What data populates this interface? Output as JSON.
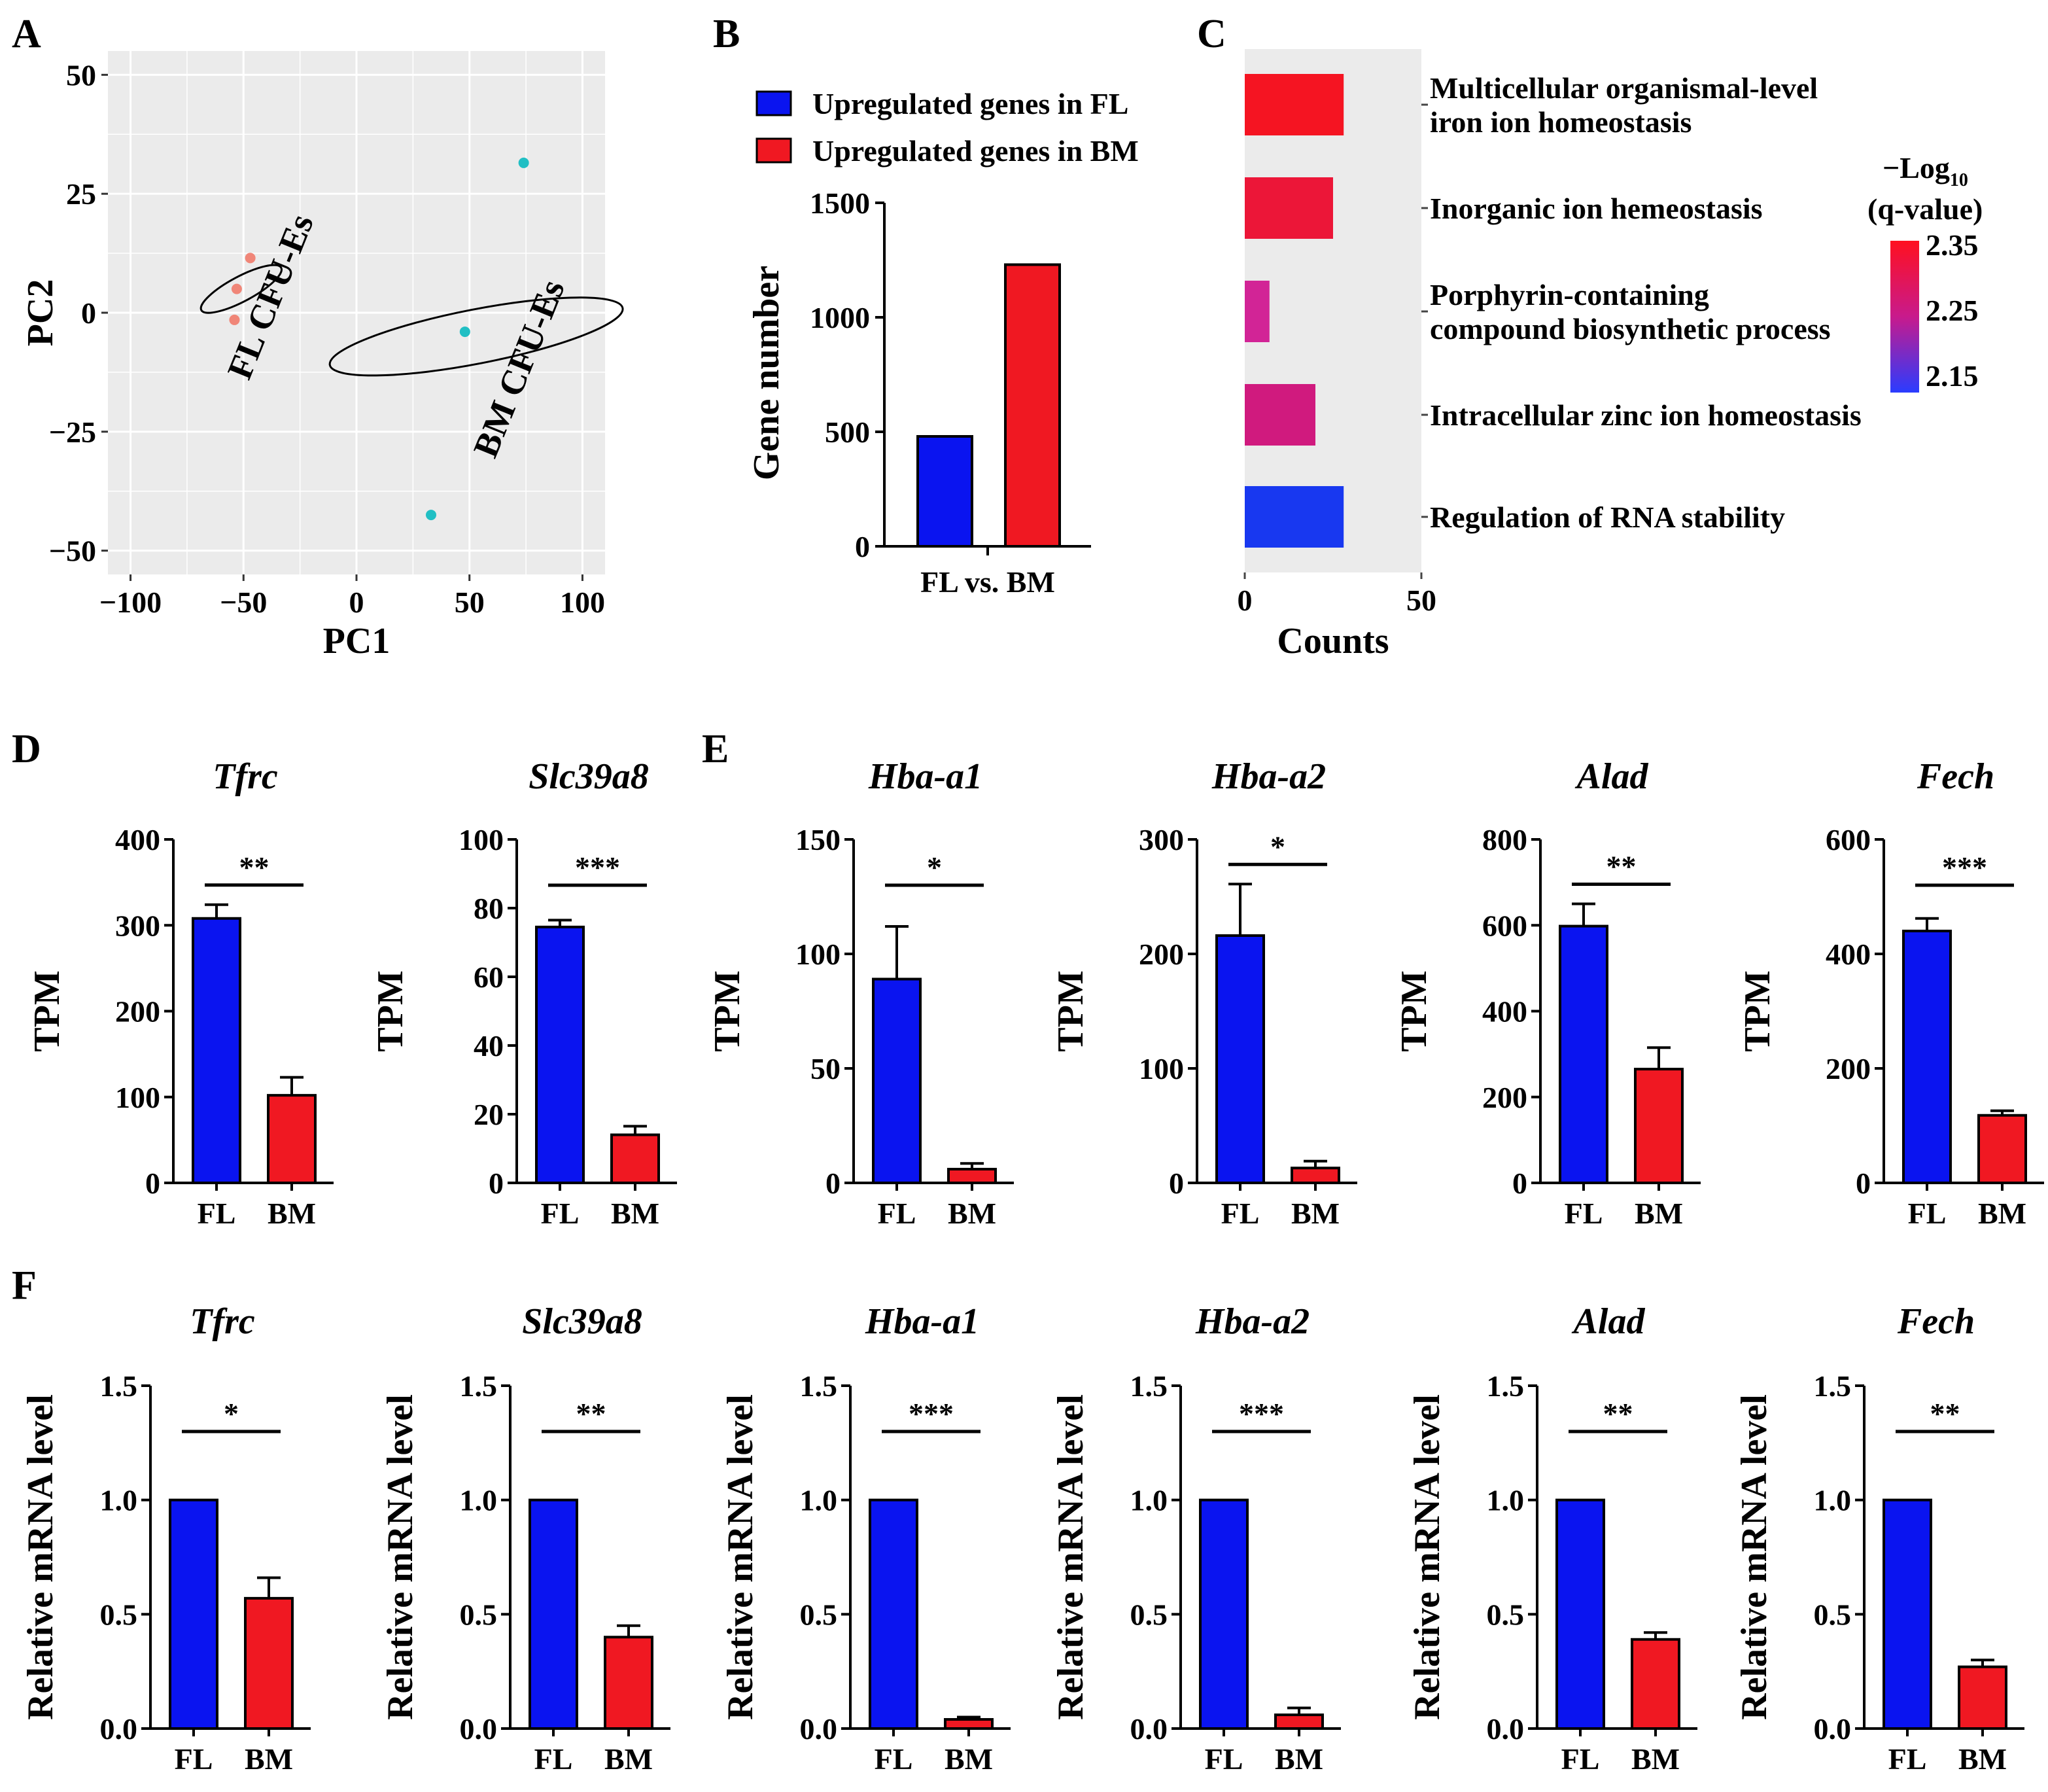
{
  "colors": {
    "fl": "#0a14f0",
    "bm": "#f01822",
    "fl_point": "#f08678",
    "bm_point": "#21bfc4",
    "panel_bg": "#ebebeb",
    "grid": "#ffffff"
  },
  "chart_data": [
    {
      "panel": "A",
      "type": "scatter",
      "xlabel": "PC1",
      "ylabel": "PC2",
      "xlim": [
        -110,
        110
      ],
      "ylim": [
        -55,
        55
      ],
      "x_ticks": [
        -100,
        -50,
        0,
        50,
        100
      ],
      "y_ticks": [
        -50,
        -25,
        0,
        25,
        50
      ],
      "x_tick_labels": [
        "−100",
        "−50",
        "0",
        "50",
        "100"
      ],
      "y_tick_labels": [
        "−50",
        "−25",
        "0",
        "25",
        "50"
      ],
      "grid": true,
      "series": [
        {
          "name": "FL CFU-Es",
          "label": "FL CFU-Es",
          "color_key": "fl_point",
          "points": [
            {
              "x": -47,
              "y": 11.5
            },
            {
              "x": -53,
              "y": 5
            },
            {
              "x": -54,
              "y": -1.5
            }
          ],
          "ellipse": {
            "cx": -51,
            "cy": 5,
            "rx": 5.5,
            "ry": 20,
            "angle": 62
          }
        },
        {
          "name": "BM CFU-Es",
          "label": "BM CFU-Es",
          "color_key": "bm_point",
          "points": [
            {
              "x": 74,
              "y": 31.5
            },
            {
              "x": 48,
              "y": -4
            },
            {
              "x": 33,
              "y": -42.5
            }
          ],
          "ellipse": {
            "cx": 53,
            "cy": -5,
            "rx": 12,
            "ry": 66,
            "angle": 79
          }
        }
      ]
    },
    {
      "panel": "B",
      "type": "bar",
      "ylabel": "Gene number",
      "categories": [
        "FL vs. BM"
      ],
      "ylim": [
        0,
        1500
      ],
      "y_ticks": [
        0,
        500,
        1000,
        1500
      ],
      "series": [
        {
          "name": "Upregulated genes in FL",
          "values": [
            480
          ],
          "color_key": "fl"
        },
        {
          "name": "Upregulated genes in BM",
          "values": [
            1230
          ],
          "color_key": "bm"
        }
      ],
      "legend": "top"
    },
    {
      "panel": "C",
      "type": "bar",
      "orientation": "horizontal",
      "xlabel": "Counts",
      "xlim": [
        0,
        50
      ],
      "x_ticks": [
        0,
        50
      ],
      "categories": [
        [
          "Multicellular organismal-level",
          "iron ion homeostasis"
        ],
        [
          "Inorganic ion hemeostasis"
        ],
        [
          "Porphyrin-containing",
          "compound biosynthetic process"
        ],
        [
          "Intracellular zinc ion homeostasis"
        ],
        [
          "Regulation of RNA stability"
        ]
      ],
      "values": [
        28,
        25,
        7,
        20,
        28
      ],
      "bar_colors": [
        "#f51422",
        "#ec1638",
        "#d22496",
        "#d01a7e",
        "#1838f0"
      ],
      "colorbar": {
        "title_prefix": "−Log",
        "title_sub": "10",
        "title_line2": "(q-value)",
        "ticks": [
          "2.35",
          "2.25",
          "2.15"
        ]
      }
    }
  ],
  "panels": {
    "D": {
      "label": "D",
      "ylabel": "TPM",
      "categories": [
        "FL",
        "BM"
      ],
      "genes": [
        {
          "gene": "Tfrc",
          "ymax": 400,
          "ticks": [
            0,
            100,
            200,
            300,
            400
          ],
          "tick_labels": [
            "0",
            "100",
            "200",
            "300",
            "400"
          ],
          "values": [
            308,
            102
          ],
          "errors": [
            16,
            21
          ],
          "sig": "**"
        },
        {
          "gene": "Slc39a8",
          "ymax": 100,
          "ticks": [
            0,
            20,
            40,
            60,
            80,
            100
          ],
          "tick_labels": [
            "0",
            "20",
            "40",
            "60",
            "80",
            "100"
          ],
          "values": [
            74.5,
            14
          ],
          "errors": [
            2,
            2.5
          ],
          "sig": "***"
        }
      ]
    },
    "E": {
      "label": "E",
      "ylabel": "TPM",
      "categories": [
        "FL",
        "BM"
      ],
      "genes": [
        {
          "gene": "Hba-a1",
          "ymax": 150,
          "ticks": [
            0,
            50,
            100,
            150
          ],
          "tick_labels": [
            "0",
            "50",
            "100",
            "150"
          ],
          "values": [
            89,
            6
          ],
          "errors": [
            23,
            2.5
          ],
          "sig": "*"
        },
        {
          "gene": "Hba-a2",
          "ymax": 300,
          "ticks": [
            0,
            100,
            200,
            300
          ],
          "tick_labels": [
            "0",
            "100",
            "200",
            "300"
          ],
          "values": [
            216,
            13
          ],
          "errors": [
            45,
            6
          ],
          "sig": "*"
        },
        {
          "gene": "Alad",
          "ymax": 800,
          "ticks": [
            0,
            200,
            400,
            600,
            800
          ],
          "tick_labels": [
            "0",
            "200",
            "400",
            "600",
            "800"
          ],
          "values": [
            598,
            265
          ],
          "errors": [
            52,
            50
          ],
          "sig": "**"
        },
        {
          "gene": "Fech",
          "ymax": 600,
          "ticks": [
            0,
            200,
            400,
            600
          ],
          "tick_labels": [
            "0",
            "200",
            "400",
            "600"
          ],
          "values": [
            440,
            118
          ],
          "errors": [
            22,
            8
          ],
          "sig": "***"
        }
      ]
    },
    "F": {
      "label": "F",
      "ylabel": "Relative mRNA level",
      "categories": [
        "FL",
        "BM"
      ],
      "genes": [
        {
          "gene": "Tfrc",
          "ymax": 1.5,
          "ticks": [
            0,
            0.5,
            1,
            1.5
          ],
          "tick_labels": [
            "0.0",
            "0.5",
            "1.0",
            "1.5"
          ],
          "values": [
            1.0,
            0.57
          ],
          "errors": [
            0,
            0.09
          ],
          "sig": "*"
        },
        {
          "gene": "Slc39a8",
          "ymax": 1.5,
          "ticks": [
            0,
            0.5,
            1,
            1.5
          ],
          "tick_labels": [
            "0.0",
            "0.5",
            "1.0",
            "1.5"
          ],
          "values": [
            1.0,
            0.4
          ],
          "errors": [
            0,
            0.05
          ],
          "sig": "**"
        },
        {
          "gene": "Hba-a1",
          "ymax": 1.5,
          "ticks": [
            0,
            0.5,
            1,
            1.5
          ],
          "tick_labels": [
            "0.0",
            "0.5",
            "1.0",
            "1.5"
          ],
          "values": [
            1.0,
            0.04
          ],
          "errors": [
            0,
            0.01
          ],
          "sig": "***"
        },
        {
          "gene": "Hba-a2",
          "ymax": 1.5,
          "ticks": [
            0,
            0.5,
            1,
            1.5
          ],
          "tick_labels": [
            "0.0",
            "0.5",
            "1.0",
            "1.5"
          ],
          "values": [
            1.0,
            0.06
          ],
          "errors": [
            0,
            0.03
          ],
          "sig": "***"
        },
        {
          "gene": "Alad",
          "ymax": 1.5,
          "ticks": [
            0,
            0.5,
            1,
            1.5
          ],
          "tick_labels": [
            "0.0",
            "0.5",
            "1.0",
            "1.5"
          ],
          "values": [
            1.0,
            0.39
          ],
          "errors": [
            0,
            0.03
          ],
          "sig": "**"
        },
        {
          "gene": "Fech",
          "ymax": 1.5,
          "ticks": [
            0,
            0.5,
            1,
            1.5
          ],
          "tick_labels": [
            "0.0",
            "0.5",
            "1.0",
            "1.5"
          ],
          "values": [
            1.0,
            0.27
          ],
          "errors": [
            0,
            0.03
          ],
          "sig": "**"
        }
      ]
    }
  },
  "labels": {
    "a": "A",
    "b": "B",
    "c": "C"
  }
}
